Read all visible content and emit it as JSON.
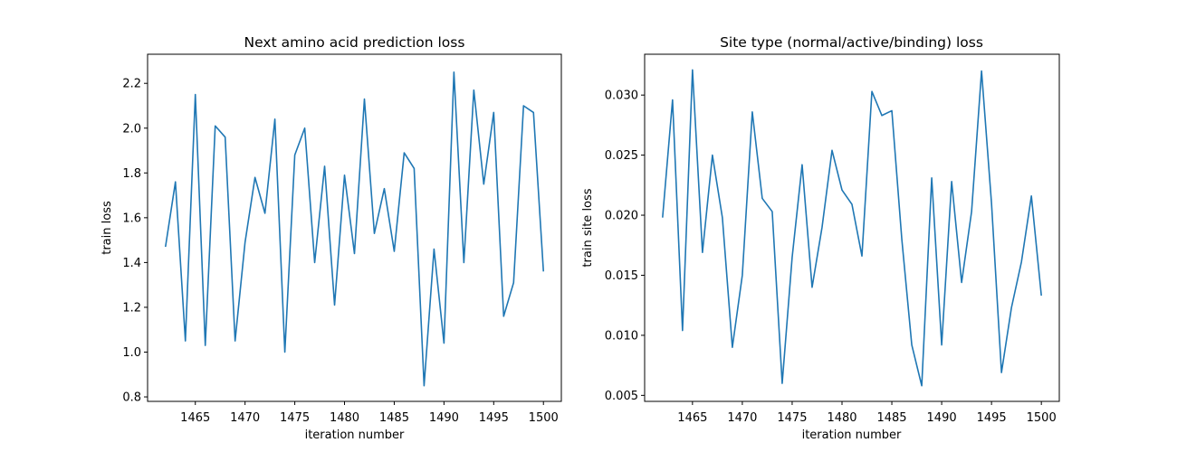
{
  "chart_data": [
    {
      "type": "line",
      "title": "Next amino acid prediction loss",
      "xlabel": "iteration number",
      "ylabel": "train loss",
      "xlim": [
        1460.2,
        1501.8
      ],
      "ylim": [
        0.78,
        2.33
      ],
      "xticks": [
        1465,
        1470,
        1475,
        1480,
        1485,
        1490,
        1495,
        1500
      ],
      "yticks": [
        0.8,
        1.0,
        1.2,
        1.4,
        1.6,
        1.8,
        2.0,
        2.2
      ],
      "ytick_format": 1,
      "grid": false,
      "color": "#1f77b4",
      "x": [
        1462,
        1463,
        1464,
        1465,
        1466,
        1467,
        1468,
        1469,
        1470,
        1471,
        1472,
        1473,
        1474,
        1475,
        1476,
        1477,
        1478,
        1479,
        1480,
        1481,
        1482,
        1483,
        1484,
        1485,
        1486,
        1487,
        1488,
        1489,
        1490,
        1491,
        1492,
        1493,
        1494,
        1495,
        1496,
        1497,
        1498,
        1499,
        1500
      ],
      "y": [
        1.47,
        1.76,
        1.05,
        2.15,
        1.03,
        2.01,
        1.96,
        1.05,
        1.49,
        1.78,
        1.62,
        2.04,
        1.0,
        1.88,
        2.0,
        1.4,
        1.83,
        1.21,
        1.79,
        1.44,
        2.13,
        1.53,
        1.73,
        1.45,
        1.89,
        1.82,
        0.85,
        1.46,
        1.04,
        2.25,
        1.4,
        2.17,
        1.75,
        2.07,
        1.16,
        1.31,
        2.1,
        2.07,
        1.36
      ]
    },
    {
      "type": "line",
      "title": "Site type (normal/active/binding) loss",
      "xlabel": "iteration number",
      "ylabel": "train site loss",
      "xlim": [
        1460.2,
        1501.8
      ],
      "ylim": [
        0.0045,
        0.0334
      ],
      "xticks": [
        1465,
        1470,
        1475,
        1480,
        1485,
        1490,
        1495,
        1500
      ],
      "yticks": [
        0.005,
        0.01,
        0.015,
        0.02,
        0.025,
        0.03
      ],
      "ytick_format": 3,
      "grid": false,
      "color": "#1f77b4",
      "x": [
        1462,
        1463,
        1464,
        1465,
        1466,
        1467,
        1468,
        1469,
        1470,
        1471,
        1472,
        1473,
        1474,
        1475,
        1476,
        1477,
        1478,
        1479,
        1480,
        1481,
        1482,
        1483,
        1484,
        1485,
        1486,
        1487,
        1488,
        1489,
        1490,
        1491,
        1492,
        1493,
        1494,
        1495,
        1496,
        1497,
        1498,
        1499,
        1500
      ],
      "y": [
        0.0198,
        0.0296,
        0.0104,
        0.0321,
        0.0169,
        0.025,
        0.0198,
        0.009,
        0.015,
        0.0286,
        0.0214,
        0.0203,
        0.006,
        0.0165,
        0.0242,
        0.014,
        0.019,
        0.0254,
        0.0221,
        0.0209,
        0.0166,
        0.0303,
        0.0283,
        0.0287,
        0.018,
        0.0092,
        0.0058,
        0.0231,
        0.0092,
        0.0228,
        0.0144,
        0.0203,
        0.032,
        0.021,
        0.0069,
        0.0123,
        0.0161,
        0.0216,
        0.0133
      ]
    }
  ]
}
